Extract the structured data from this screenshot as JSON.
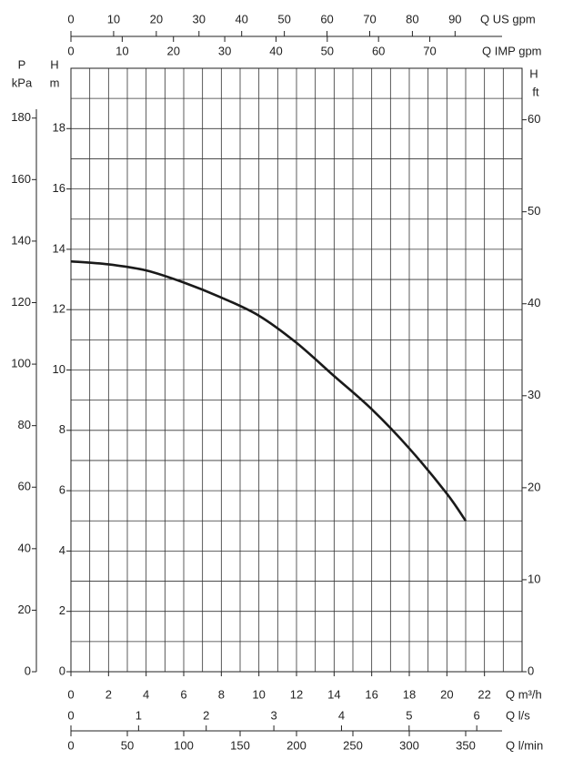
{
  "chart_data": {
    "type": "line",
    "x": [
      0,
      2,
      4,
      6,
      8,
      10,
      12,
      14,
      16,
      18,
      20,
      21
    ],
    "series": [
      {
        "color": "#1a1a1a",
        "values": [
          13.6,
          13.5,
          13.3,
          12.9,
          12.4,
          11.8,
          10.9,
          9.8,
          8.7,
          7.4,
          5.9,
          5.0
        ]
      }
    ],
    "xlabel": "Q m³/h",
    "xlim": [
      0,
      24
    ],
    "xticks": [
      0,
      2,
      4,
      6,
      8,
      10,
      12,
      14,
      16,
      18,
      20,
      22
    ],
    "ylabel": [
      "H",
      "m"
    ],
    "ylim": [
      0,
      20
    ],
    "yticks": [
      0,
      2,
      4,
      6,
      8,
      10,
      12,
      14,
      16,
      18
    ],
    "grid": true,
    "xgrid": [
      0,
      1,
      2,
      3,
      4,
      5,
      6,
      7,
      8,
      9,
      10,
      11,
      12,
      13,
      14,
      15,
      16,
      17,
      18,
      19,
      20,
      21,
      22,
      23,
      24
    ],
    "ygrid": [
      0,
      1,
      2,
      3,
      4,
      5,
      6,
      7,
      8,
      9,
      10,
      11,
      12,
      13,
      14,
      15,
      16,
      17,
      18,
      19,
      20
    ],
    "axes": [
      {
        "position": "left",
        "label": [
          "P",
          "kPa"
        ],
        "lim": [
          0,
          196.2
        ],
        "ticks": [
          0,
          20,
          40,
          60,
          80,
          100,
          120,
          140,
          160,
          180
        ]
      },
      {
        "position": "right",
        "label": [
          "H",
          "ft"
        ],
        "lim": [
          0,
          65.6
        ],
        "ticks": [
          0,
          10,
          20,
          30,
          40,
          50,
          60
        ]
      },
      {
        "position": "top",
        "label": [
          "Q US gpm"
        ],
        "lim": [
          0,
          105.7
        ],
        "ticks": [
          0,
          10,
          20,
          30,
          40,
          50,
          60,
          70,
          80,
          90
        ]
      },
      {
        "position": "top",
        "label": [
          "Q IMP gpm"
        ],
        "lim": [
          0,
          88
        ],
        "ticks": [
          0,
          10,
          20,
          30,
          40,
          50,
          60,
          70
        ]
      },
      {
        "position": "bottom",
        "label": [
          "Q l/s"
        ],
        "lim": [
          0,
          6.67
        ],
        "ticks": [
          0,
          1,
          2,
          3,
          4,
          5,
          6
        ]
      },
      {
        "position": "bottom",
        "label": [
          "Q l/min"
        ],
        "lim": [
          0,
          400
        ],
        "ticks": [
          0,
          50,
          100,
          150,
          200,
          250,
          300,
          350
        ]
      }
    ]
  }
}
